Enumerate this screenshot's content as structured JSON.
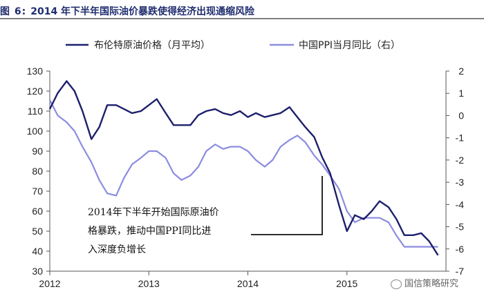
{
  "figure": {
    "label": "图 6:",
    "title": "2014 年下半年国际油价暴跌使得经济出现通缩风险"
  },
  "chart_data": {
    "type": "line",
    "title": "2014 年下半年国际油价暴跌使得经济出现通缩风险",
    "x_ticks": [
      "2012",
      "2013",
      "2014",
      "2015"
    ],
    "y_left": {
      "range": [
        30,
        130
      ],
      "ticks": [
        30,
        40,
        50,
        60,
        70,
        80,
        90,
        100,
        110,
        120,
        130
      ]
    },
    "y_right": {
      "range": [
        -7,
        2
      ],
      "ticks": [
        -7,
        -6,
        -5,
        -4,
        -3,
        -2,
        -1,
        0,
        1,
        2
      ]
    },
    "annotation": {
      "lines": [
        "2014年下半年开始国际原油价",
        "格暴跌，推动中国PPI同比进",
        "入深度负增长"
      ]
    },
    "series": [
      {
        "name": "布伦特原油价格（月平均）",
        "axis": "left",
        "color": "#1c1f6b",
        "points": [
          [
            2012.0,
            111
          ],
          [
            2012.08,
            119
          ],
          [
            2012.17,
            125
          ],
          [
            2012.25,
            120
          ],
          [
            2012.33,
            110
          ],
          [
            2012.42,
            96
          ],
          [
            2012.5,
            102
          ],
          [
            2012.58,
            113
          ],
          [
            2012.67,
            113
          ],
          [
            2012.75,
            111
          ],
          [
            2012.83,
            109
          ],
          [
            2012.92,
            110
          ],
          [
            2013.0,
            113
          ],
          [
            2013.08,
            116
          ],
          [
            2013.17,
            109
          ],
          [
            2013.25,
            103
          ],
          [
            2013.33,
            103
          ],
          [
            2013.42,
            103
          ],
          [
            2013.5,
            108
          ],
          [
            2013.58,
            110
          ],
          [
            2013.67,
            111
          ],
          [
            2013.75,
            109
          ],
          [
            2013.83,
            108
          ],
          [
            2013.92,
            110
          ],
          [
            2014.0,
            107
          ],
          [
            2014.08,
            109
          ],
          [
            2014.17,
            107
          ],
          [
            2014.25,
            108
          ],
          [
            2014.33,
            109
          ],
          [
            2014.42,
            112
          ],
          [
            2014.5,
            107
          ],
          [
            2014.58,
            102
          ],
          [
            2014.67,
            97
          ],
          [
            2014.75,
            87
          ],
          [
            2014.83,
            79
          ],
          [
            2014.92,
            63
          ],
          [
            2015.0,
            50
          ],
          [
            2015.08,
            58
          ],
          [
            2015.17,
            56
          ],
          [
            2015.25,
            60
          ],
          [
            2015.33,
            65
          ],
          [
            2015.42,
            62
          ],
          [
            2015.5,
            56
          ],
          [
            2015.58,
            48
          ],
          [
            2015.67,
            48
          ],
          [
            2015.75,
            49
          ],
          [
            2015.83,
            45
          ],
          [
            2015.92,
            38
          ]
        ]
      },
      {
        "name": "中国PPI当月同比（右）",
        "axis": "right",
        "color": "#8b8be0",
        "points": [
          [
            2012.0,
            0.7
          ],
          [
            2012.08,
            0.0
          ],
          [
            2012.17,
            -0.3
          ],
          [
            2012.25,
            -0.7
          ],
          [
            2012.33,
            -1.4
          ],
          [
            2012.42,
            -2.1
          ],
          [
            2012.5,
            -2.9
          ],
          [
            2012.58,
            -3.5
          ],
          [
            2012.67,
            -3.6
          ],
          [
            2012.75,
            -2.8
          ],
          [
            2012.83,
            -2.2
          ],
          [
            2012.92,
            -1.9
          ],
          [
            2013.0,
            -1.6
          ],
          [
            2013.08,
            -1.6
          ],
          [
            2013.17,
            -1.9
          ],
          [
            2013.25,
            -2.6
          ],
          [
            2013.33,
            -2.9
          ],
          [
            2013.42,
            -2.7
          ],
          [
            2013.5,
            -2.3
          ],
          [
            2013.58,
            -1.6
          ],
          [
            2013.67,
            -1.3
          ],
          [
            2013.75,
            -1.5
          ],
          [
            2013.83,
            -1.4
          ],
          [
            2013.92,
            -1.4
          ],
          [
            2014.0,
            -1.6
          ],
          [
            2014.08,
            -2.0
          ],
          [
            2014.17,
            -2.3
          ],
          [
            2014.25,
            -2.0
          ],
          [
            2014.33,
            -1.4
          ],
          [
            2014.42,
            -1.1
          ],
          [
            2014.5,
            -0.9
          ],
          [
            2014.58,
            -1.2
          ],
          [
            2014.67,
            -1.8
          ],
          [
            2014.75,
            -2.2
          ],
          [
            2014.83,
            -2.7
          ],
          [
            2014.92,
            -3.3
          ],
          [
            2015.0,
            -4.3
          ],
          [
            2015.08,
            -4.8
          ],
          [
            2015.17,
            -4.6
          ],
          [
            2015.25,
            -4.6
          ],
          [
            2015.33,
            -4.6
          ],
          [
            2015.42,
            -4.8
          ],
          [
            2015.5,
            -5.4
          ],
          [
            2015.58,
            -5.9
          ],
          [
            2015.67,
            -5.9
          ],
          [
            2015.75,
            -5.9
          ],
          [
            2015.83,
            -5.9
          ],
          [
            2015.92,
            -5.9
          ]
        ]
      }
    ]
  },
  "watermark": {
    "text": "国信策略研究"
  }
}
